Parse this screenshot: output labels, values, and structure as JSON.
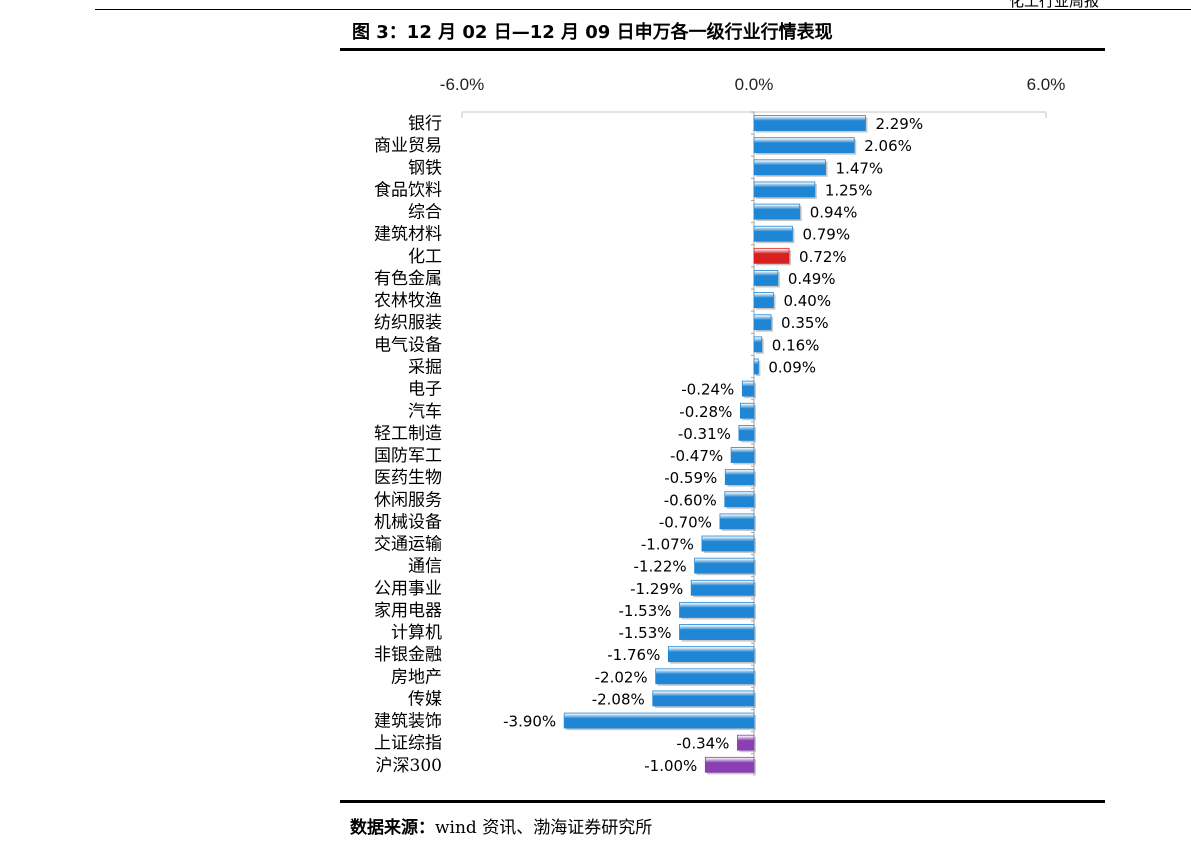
{
  "header": {
    "right_text": "化工行业周报"
  },
  "figure": {
    "title": "图 3：12 月 02 日—12 月 09 日申万各一级行业行情表现",
    "source_label": "数据来源：",
    "source_text": "wind 资讯、渤海证券研究所"
  },
  "colors": {
    "default_bar": "#1f86d6",
    "highlight_bar": "#d92020",
    "index_bar": "#8a3fb3"
  },
  "chart_data": {
    "type": "bar",
    "orientation": "horizontal",
    "title": "图 3：12 月 02 日—12 月 09 日申万各一级行业行情表现",
    "xlim": [
      -6.0,
      6.0
    ],
    "x_ticks": [
      "-6.0%",
      "0.0%",
      "6.0%"
    ],
    "x_tick_values": [
      -6.0,
      0.0,
      6.0
    ],
    "axis_position": "top",
    "grid": false,
    "value_suffix": "%",
    "categories": [
      "银行",
      "商业贸易",
      "钢铁",
      "食品饮料",
      "综合",
      "建筑材料",
      "化工",
      "有色金属",
      "农林牧渔",
      "纺织服装",
      "电气设备",
      "采掘",
      "电子",
      "汽车",
      "轻工制造",
      "国防军工",
      "医药生物",
      "休闲服务",
      "机械设备",
      "交通运输",
      "通信",
      "公用事业",
      "家用电器",
      "计算机",
      "非银金融",
      "房地产",
      "传媒",
      "建筑装饰",
      "上证综指",
      "沪深300"
    ],
    "values": [
      2.29,
      2.06,
      1.47,
      1.25,
      0.94,
      0.79,
      0.72,
      0.49,
      0.4,
      0.35,
      0.16,
      0.09,
      -0.24,
      -0.28,
      -0.31,
      -0.47,
      -0.59,
      -0.6,
      -0.7,
      -1.07,
      -1.22,
      -1.29,
      -1.53,
      -1.53,
      -1.76,
      -2.02,
      -2.08,
      -3.9,
      -0.34,
      -1.0
    ],
    "value_labels": [
      "2.29%",
      "2.06%",
      "1.47%",
      "1.25%",
      "0.94%",
      "0.79%",
      "0.72%",
      "0.49%",
      "0.40%",
      "0.35%",
      "0.16%",
      "0.09%",
      "-0.24%",
      "-0.28%",
      "-0.31%",
      "-0.47%",
      "-0.59%",
      "-0.60%",
      "-0.70%",
      "-1.07%",
      "-1.22%",
      "-1.29%",
      "-1.53%",
      "-1.53%",
      "-1.76%",
      "-2.02%",
      "-2.08%",
      "-3.90%",
      "-0.34%",
      "-1.00%"
    ],
    "bar_color_keys": [
      "default",
      "default",
      "default",
      "default",
      "default",
      "default",
      "highlight",
      "default",
      "default",
      "default",
      "default",
      "default",
      "default",
      "default",
      "default",
      "default",
      "default",
      "default",
      "default",
      "default",
      "default",
      "default",
      "default",
      "default",
      "default",
      "default",
      "default",
      "default",
      "index",
      "index"
    ]
  }
}
